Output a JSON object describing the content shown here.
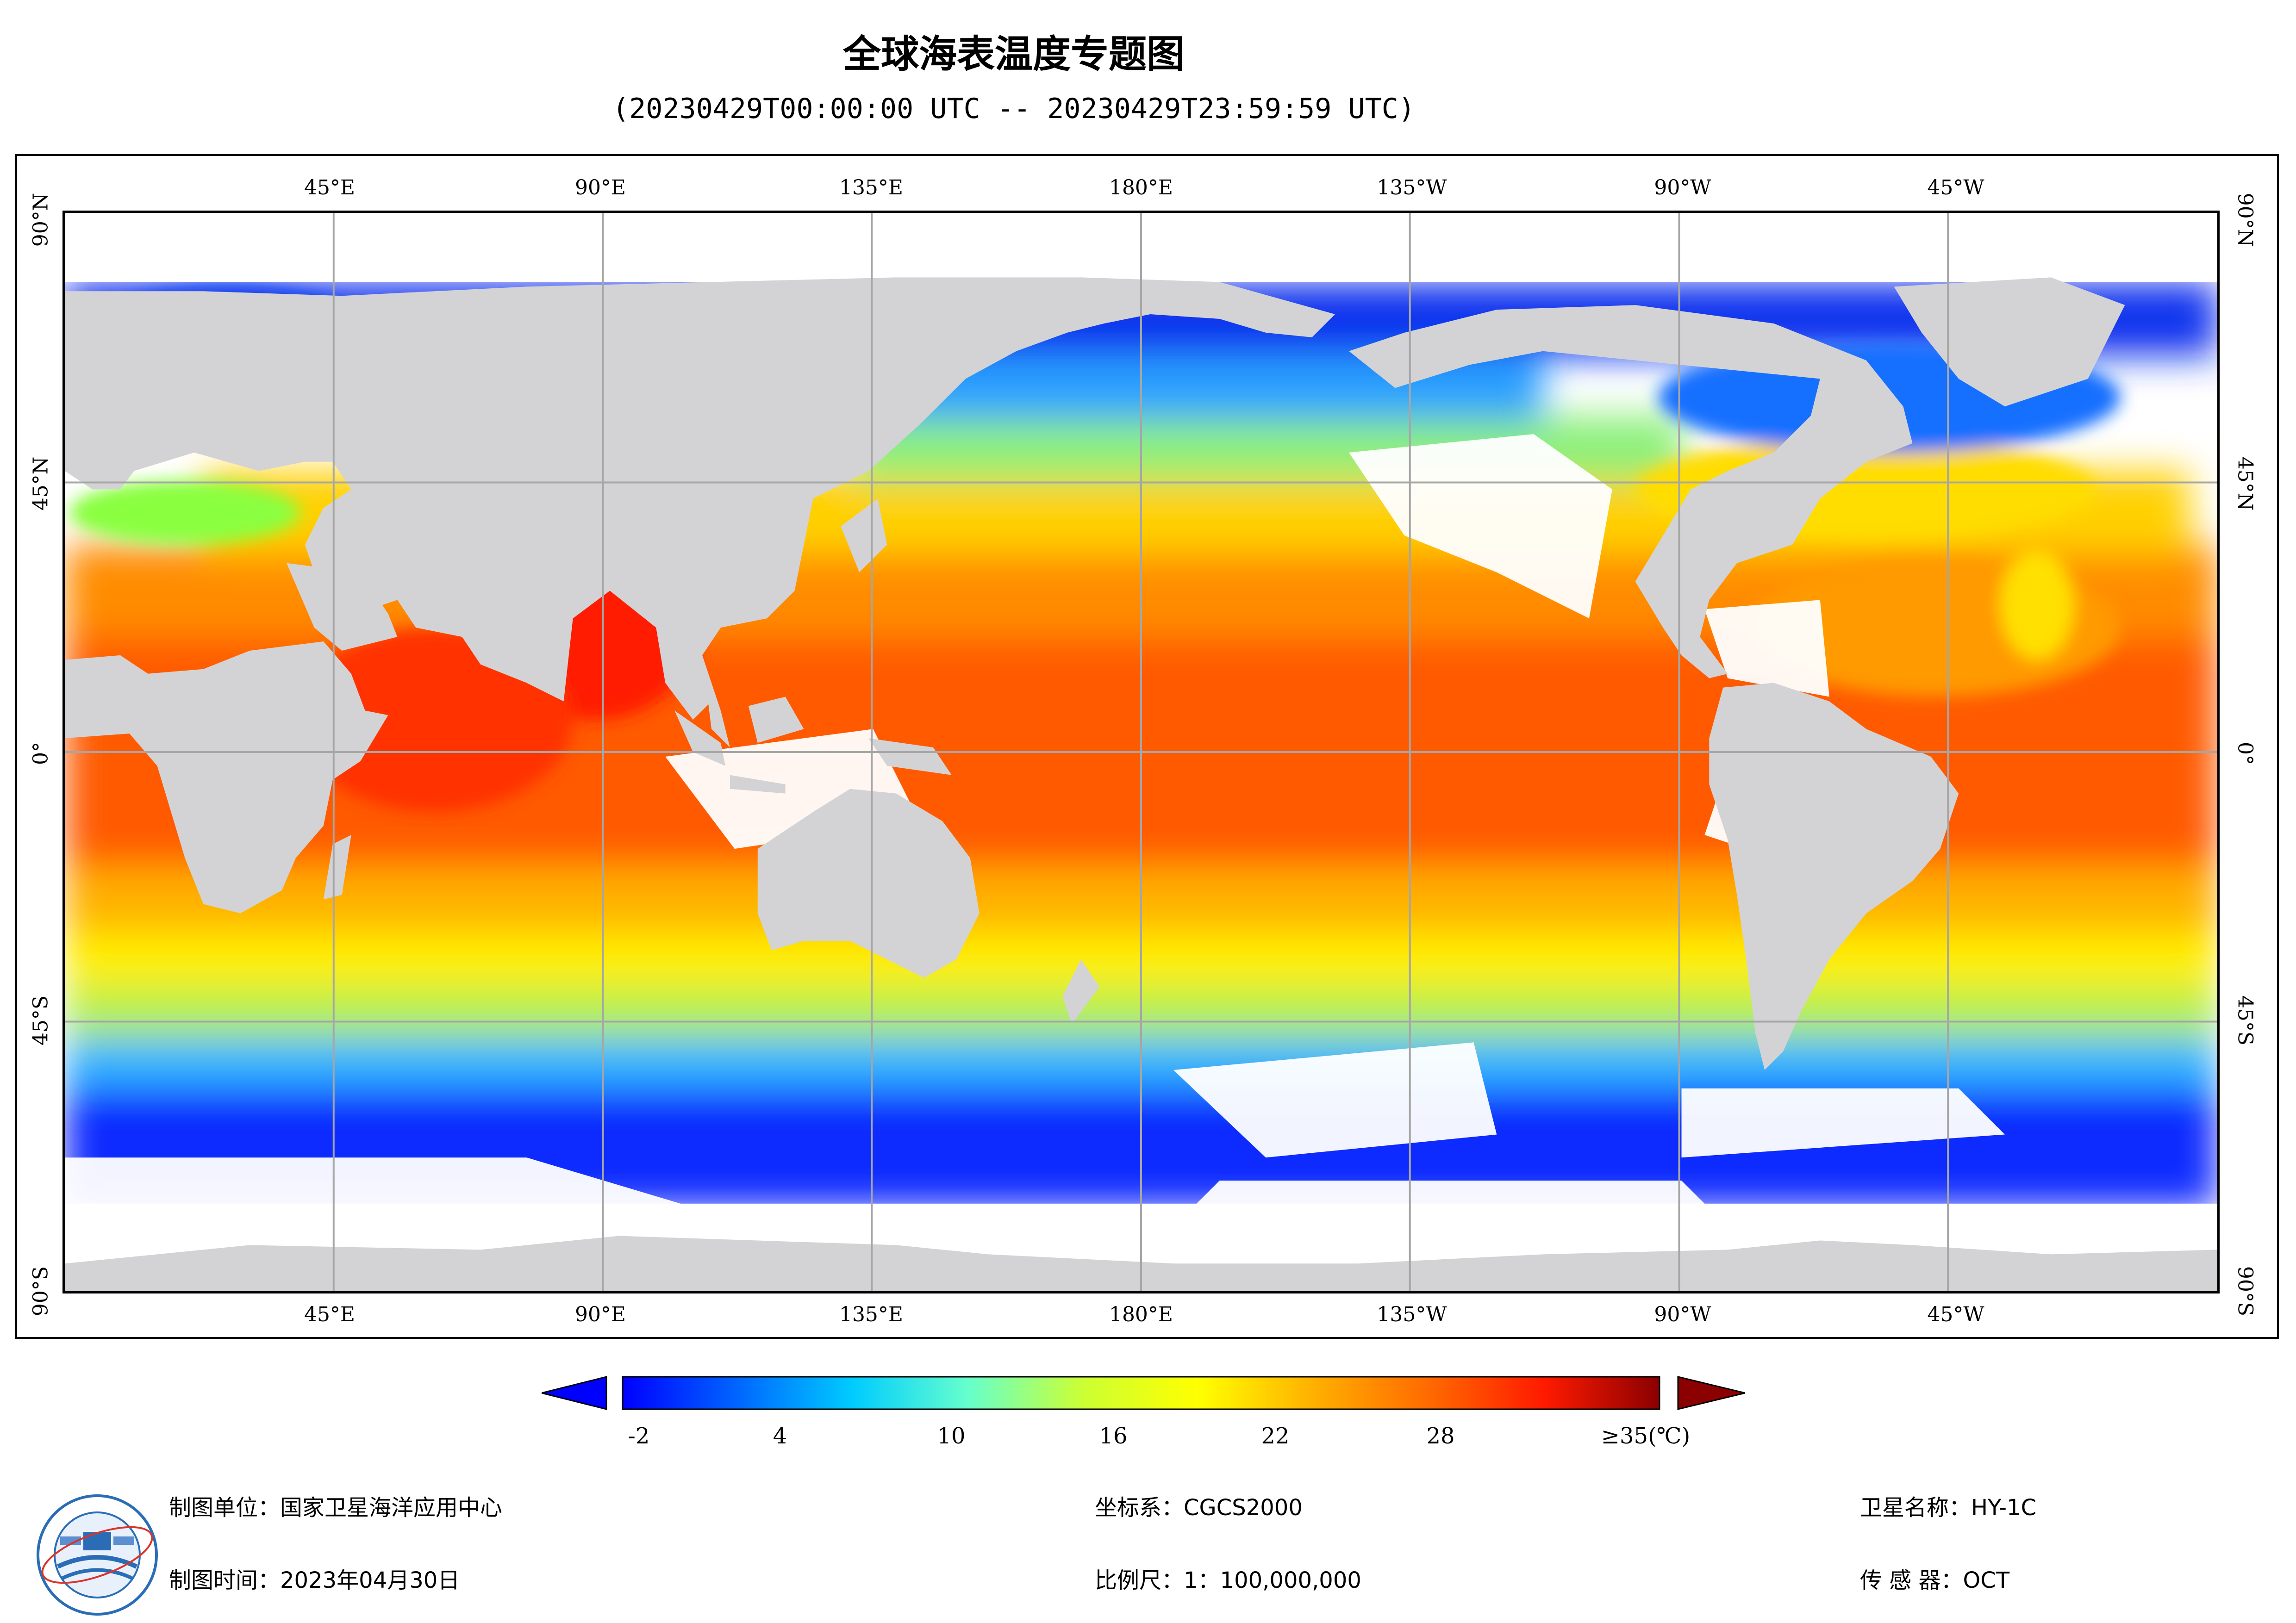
{
  "title": "全球海表温度专题图",
  "subtitle": "(20230429T00:00:00 UTC -- 20230429T23:59:59 UTC)",
  "longitude_labels": [
    "45°E",
    "90°E",
    "135°E",
    "180°E",
    "135°W",
    "90°W",
    "45°W"
  ],
  "latitude_labels": [
    "90°N",
    "45°N",
    "0°",
    "45°S",
    "90°S"
  ],
  "colorbar": {
    "ticks": [
      "-2",
      "4",
      "10",
      "16",
      "22",
      "28",
      "≥35(℃)"
    ],
    "min": -2,
    "max": 35,
    "unit": "℃",
    "colors": [
      "#0000ff",
      "#0066ff",
      "#00ccff",
      "#66ffcc",
      "#ccff33",
      "#ffff00",
      "#ffb000",
      "#ff6a00",
      "#ff1a00",
      "#8b0000"
    ],
    "underflow_color": "#0000ff",
    "overflow_color": "#8b0000"
  },
  "map_colors": {
    "land": "#d3d3d5",
    "no_data": "#ffffff",
    "grid": "#a6a6a6"
  },
  "footer": {
    "unit": "制图单位：国家卫星海洋应用中心",
    "time": "制图时间：2023年04月30日",
    "crs": "坐标系：CGCS2000",
    "scale": "比例尺：1：100,000,000",
    "satellite": "卫星名称：HY-1C",
    "sensor": "传 感 器：OCT"
  },
  "logo": {
    "name": "national-satellite-ocean-application-service-logo",
    "text": "国家卫星海洋应用中心 NATIONAL SATELLITE OCEAN APPLICATION SERVICE"
  }
}
